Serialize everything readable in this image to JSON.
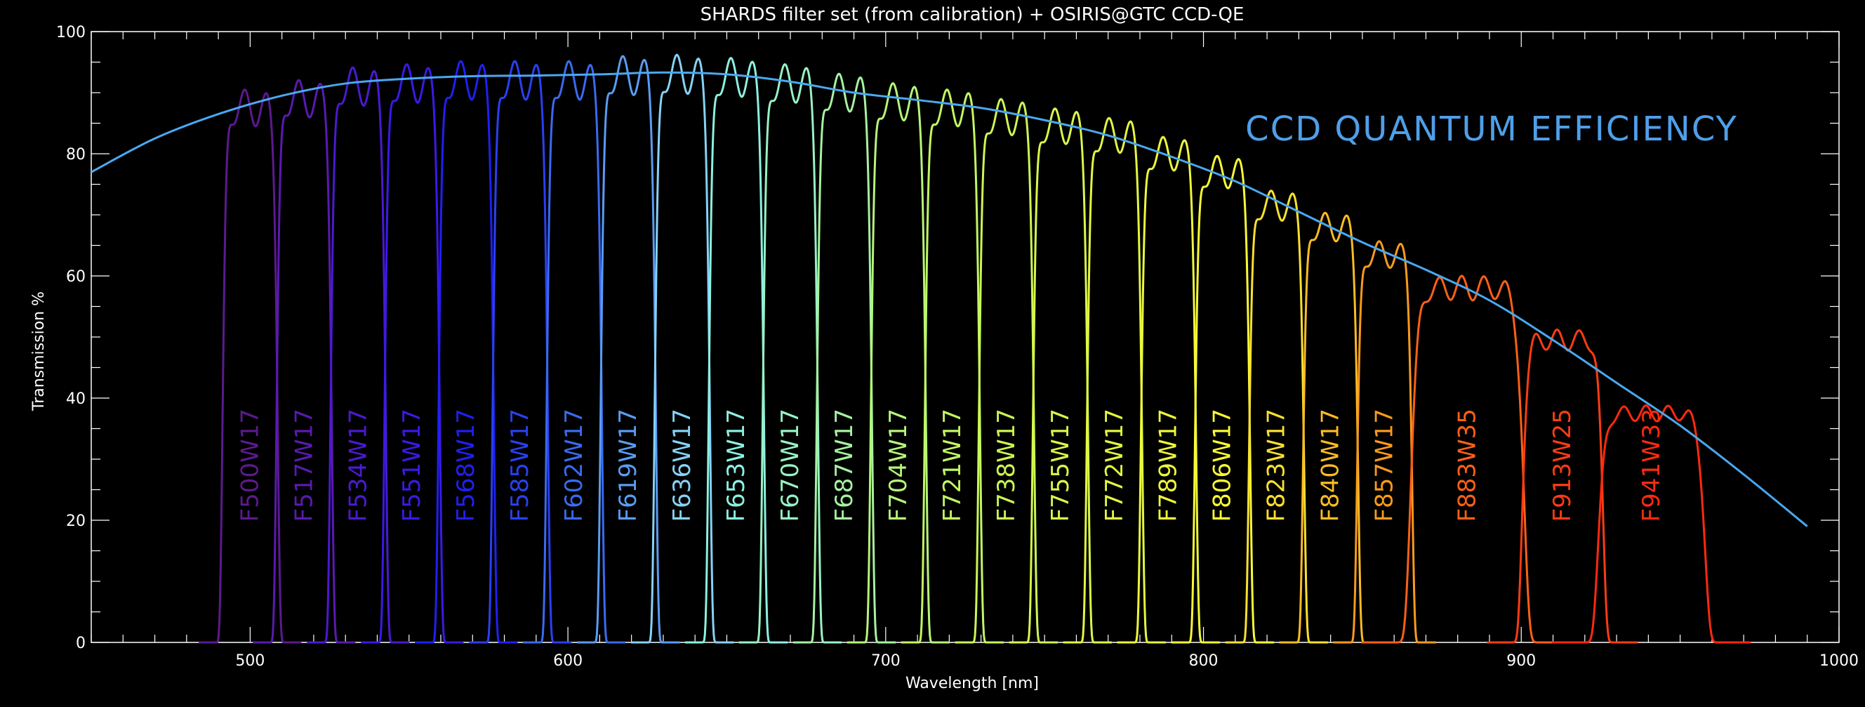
{
  "chart_data": {
    "type": "line",
    "title": "SHARDS filter set (from calibration) + OSIRIS@GTC CCD-QE",
    "xlabel": "Wavelength [nm]",
    "ylabel": "Transmission %",
    "xlim": [
      450,
      1000
    ],
    "ylim": [
      0,
      100
    ],
    "x_ticks": [
      500,
      600,
      700,
      800,
      900,
      1000
    ],
    "y_ticks": [
      0,
      20,
      40,
      60,
      80,
      100
    ],
    "grid": false,
    "annotation": "CCD QUANTUM EFFICIENCY",
    "annotation_color": "#4f9fe8",
    "ccd_qe": {
      "color": "#4aa8f0",
      "x": [
        450,
        470,
        490,
        510,
        530,
        550,
        570,
        590,
        610,
        630,
        650,
        670,
        690,
        710,
        730,
        750,
        770,
        790,
        810,
        830,
        850,
        870,
        890,
        910,
        930,
        950,
        970,
        990
      ],
      "y": [
        77,
        82.5,
        86.5,
        89.5,
        91.5,
        92.3,
        92.7,
        92.8,
        93.0,
        93.3,
        93.0,
        91.8,
        90.0,
        88.8,
        87.5,
        85.5,
        83.0,
        79.5,
        75.5,
        70.5,
        65.5,
        61.0,
        56.0,
        49.5,
        42.5,
        35.5,
        27.5,
        19
      ]
    },
    "series": [
      {
        "name": "F500W17",
        "center": 500,
        "width": 17,
        "peak": 87.5,
        "color": "#5b1a8f"
      },
      {
        "name": "F517W17",
        "center": 517,
        "width": 17,
        "peak": 89.0,
        "color": "#5a1ab0"
      },
      {
        "name": "F534W17",
        "center": 534,
        "width": 17,
        "peak": 91.0,
        "color": "#4a1ad0"
      },
      {
        "name": "F551W17",
        "center": 551,
        "width": 17,
        "peak": 91.5,
        "color": "#3a1ae6"
      },
      {
        "name": "F568W17",
        "center": 568,
        "width": 17,
        "peak": 92.0,
        "color": "#2020f0"
      },
      {
        "name": "F585W17",
        "center": 585,
        "width": 17,
        "peak": 92.0,
        "color": "#2a40f0"
      },
      {
        "name": "F602W17",
        "center": 602,
        "width": 17,
        "peak": 92.0,
        "color": "#3a6af0"
      },
      {
        "name": "F619W17",
        "center": 619,
        "width": 17,
        "peak": 92.8,
        "color": "#5a9cf2"
      },
      {
        "name": "F636W17",
        "center": 636,
        "width": 17,
        "peak": 93.0,
        "color": "#86d2f6"
      },
      {
        "name": "F653W17",
        "center": 653,
        "width": 17,
        "peak": 92.5,
        "color": "#8cf0e0"
      },
      {
        "name": "F670W17",
        "center": 670,
        "width": 17,
        "peak": 91.5,
        "color": "#98f2c4"
      },
      {
        "name": "F687W17",
        "center": 687,
        "width": 17,
        "peak": 90.0,
        "color": "#a6f2a0"
      },
      {
        "name": "F704W17",
        "center": 704,
        "width": 17,
        "peak": 88.5,
        "color": "#b6f57a"
      },
      {
        "name": "F721W17",
        "center": 721,
        "width": 17,
        "peak": 87.5,
        "color": "#c2f763"
      },
      {
        "name": "F738W17",
        "center": 738,
        "width": 17,
        "peak": 86.0,
        "color": "#ccf754"
      },
      {
        "name": "F755W17",
        "center": 755,
        "width": 17,
        "peak": 84.5,
        "color": "#d8f84a"
      },
      {
        "name": "F772W17",
        "center": 772,
        "width": 17,
        "peak": 83.0,
        "color": "#e2f840"
      },
      {
        "name": "F789W17",
        "center": 789,
        "width": 17,
        "peak": 80.0,
        "color": "#eef83a"
      },
      {
        "name": "F806W17",
        "center": 806,
        "width": 17,
        "peak": 77.0,
        "color": "#fafa36"
      },
      {
        "name": "F823W17",
        "center": 823,
        "width": 17,
        "peak": 71.5,
        "color": "#fae030"
      },
      {
        "name": "F840W17",
        "center": 840,
        "width": 17,
        "peak": 68.0,
        "color": "#fbbc26"
      },
      {
        "name": "F857W17",
        "center": 857,
        "width": 17,
        "peak": 63.5,
        "color": "#fb9a1c"
      },
      {
        "name": "F883W35",
        "center": 883,
        "width": 35,
        "peak": 58.0,
        "color": "#fc6018"
      },
      {
        "name": "F913W25",
        "center": 913,
        "width": 25,
        "peak": 49.5,
        "color": "#fc3c14"
      },
      {
        "name": "F941W33",
        "center": 941,
        "width": 33,
        "peak": 37.5,
        "color": "#fc2a10"
      }
    ]
  }
}
